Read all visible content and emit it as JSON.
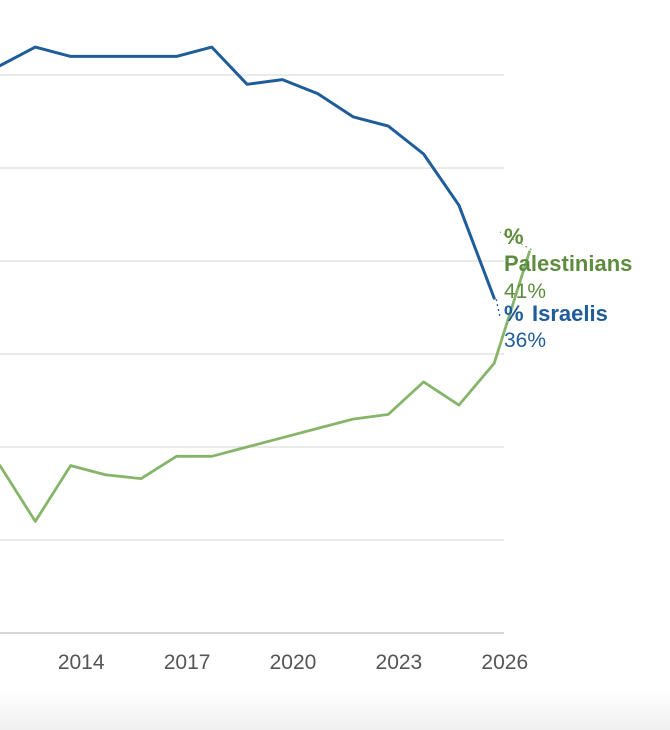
{
  "chart_data": {
    "type": "line",
    "x_ticks": [
      2014,
      2017,
      2020,
      2023,
      2026
    ],
    "ylim": [
      0,
      65
    ],
    "grid": true,
    "colors": {
      "palestinians": "#86b56a",
      "israelis": "#1f5c9a",
      "palestinians_text": "#5d8c3e",
      "israelis_text": "#1f5c9a",
      "grid": "#dddddd"
    },
    "series": [
      {
        "key": "palestinians",
        "label_prefix": "%",
        "name": "Palestinians",
        "end_value_label": "41%",
        "points": [
          [
            2011.7,
            18
          ],
          [
            2012.7,
            12
          ],
          [
            2013.7,
            18
          ],
          [
            2014.7,
            17
          ],
          [
            2015.7,
            16.6
          ],
          [
            2016.7,
            19
          ],
          [
            2017.7,
            19
          ],
          [
            2018.7,
            20
          ],
          [
            2019.7,
            21
          ],
          [
            2020.7,
            22
          ],
          [
            2021.7,
            23
          ],
          [
            2022.7,
            23.5
          ],
          [
            2023.7,
            27
          ],
          [
            2024.7,
            24.5
          ],
          [
            2025.7,
            29
          ],
          [
            2026.7,
            41
          ]
        ]
      },
      {
        "key": "israelis",
        "label_prefix": "%",
        "name": "Israelis",
        "end_value_label": "36%",
        "points": [
          [
            2011.7,
            61
          ],
          [
            2012.7,
            63
          ],
          [
            2013.7,
            62
          ],
          [
            2014.7,
            62
          ],
          [
            2015.7,
            62
          ],
          [
            2016.7,
            62
          ],
          [
            2017.7,
            63
          ],
          [
            2018.7,
            59
          ],
          [
            2019.7,
            59.5
          ],
          [
            2020.7,
            58
          ],
          [
            2021.7,
            55.5
          ],
          [
            2022.7,
            54.5
          ],
          [
            2023.7,
            51.5
          ],
          [
            2024.7,
            46
          ],
          [
            2025.7,
            36
          ]
        ]
      }
    ]
  }
}
